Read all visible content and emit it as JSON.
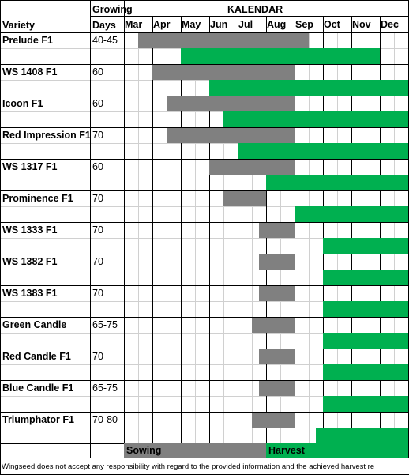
{
  "header": {
    "variety_label": "Variety",
    "growing_label": "Growing",
    "days_label": "Days",
    "calendar_title": "KALENDAR",
    "months": [
      "Mar",
      "Apr",
      "May",
      "Jun",
      "Jul",
      "Aug",
      "Sep",
      "Oct",
      "Nov",
      "Dec"
    ]
  },
  "rows": [
    {
      "name": "Prelude F1",
      "days": "40-45",
      "sowing": [
        1,
        13
      ],
      "harvest": [
        4,
        18
      ]
    },
    {
      "name": "WS 1408 F1",
      "days": "60",
      "sowing": [
        2,
        12
      ],
      "harvest": [
        6,
        20
      ]
    },
    {
      "name": "Icoon F1",
      "days": "60",
      "sowing": [
        3,
        12
      ],
      "harvest": [
        7,
        20
      ]
    },
    {
      "name": "Red Impression F1",
      "days": "70",
      "sowing": [
        3,
        12
      ],
      "harvest": [
        8,
        20
      ]
    },
    {
      "name": "WS 1317 F1",
      "days": "60",
      "sowing": [
        6,
        12
      ],
      "harvest": [
        10,
        20
      ]
    },
    {
      "name": "Prominence F1",
      "days": "70",
      "sowing": [
        7,
        10
      ],
      "harvest": [
        12,
        20
      ]
    },
    {
      "name": "WS 1333 F1",
      "days": "70",
      "sowing": [
        9.5,
        12
      ],
      "harvest": [
        14,
        20
      ]
    },
    {
      "name": "WS 1382 F1",
      "days": "70",
      "sowing": [
        9.5,
        12
      ],
      "harvest": [
        14,
        20
      ]
    },
    {
      "name": "WS 1383 F1",
      "days": "70",
      "sowing": [
        9.5,
        12
      ],
      "harvest": [
        14,
        20
      ]
    },
    {
      "name": "Green Candle",
      "days": "65-75",
      "sowing": [
        9,
        12
      ],
      "harvest": [
        14,
        20
      ]
    },
    {
      "name": "Red Candle F1",
      "days": "70",
      "sowing": [
        9.5,
        12
      ],
      "harvest": [
        14,
        20
      ]
    },
    {
      "name": "Blue Candle F1",
      "days": "65-75",
      "sowing": [
        9.5,
        12
      ],
      "harvest": [
        14,
        20
      ]
    },
    {
      "name": "Triumphator F1",
      "days": "70-80",
      "sowing": [
        9,
        12
      ],
      "harvest": [
        13.5,
        20
      ]
    }
  ],
  "legend": {
    "sowing_label": "Sowing",
    "harvest_label": "Harvest"
  },
  "footer_text": "Wingseed does not accept any responsibility with regard to the provided information and the achieved harvest re",
  "colors": {
    "sowing": "#808080",
    "harvest": "#00b050",
    "grid": "#d0d0d0"
  }
}
